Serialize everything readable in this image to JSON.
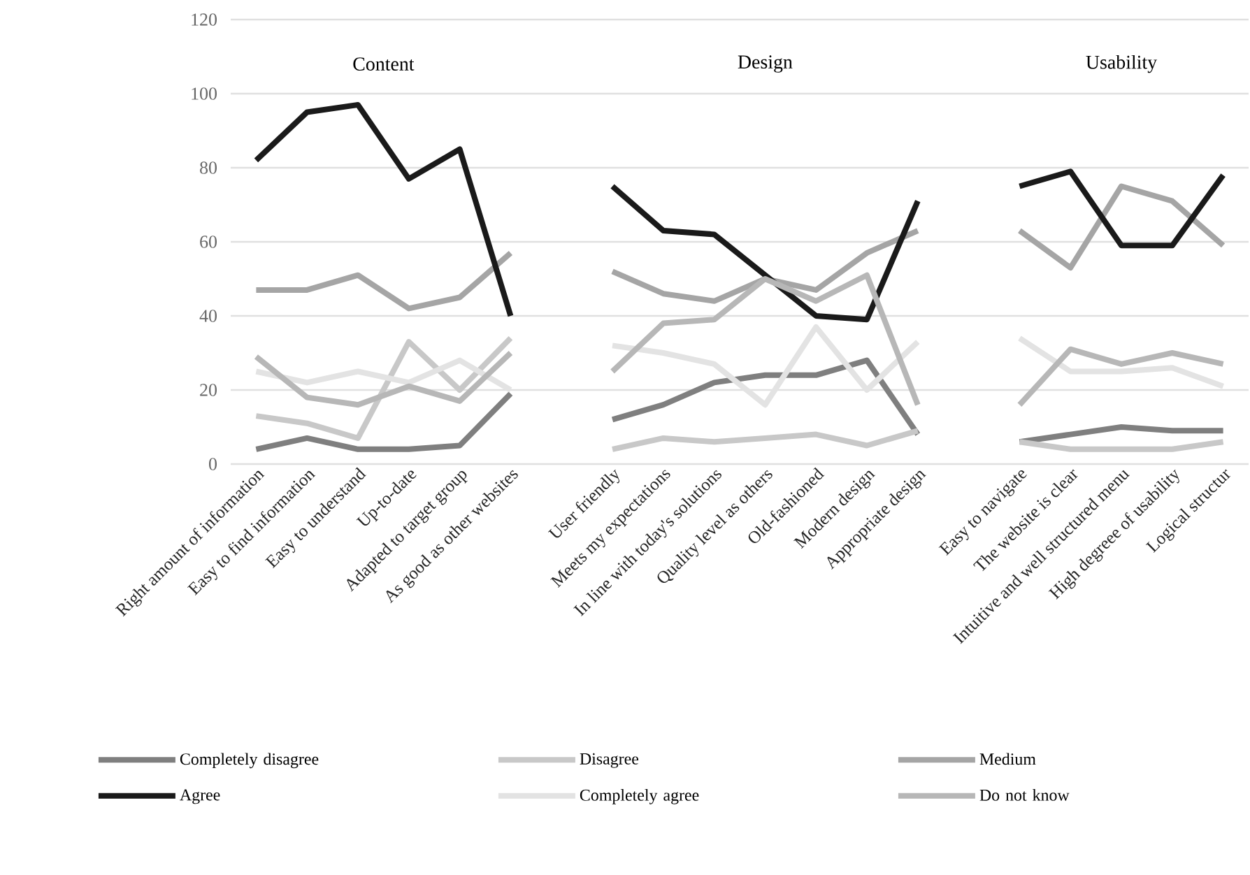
{
  "chart_data": {
    "type": "line",
    "categories": [
      "Right amount of information",
      "Easy to find information",
      "Easy to understand",
      "Up-to-date",
      "Adapted to target group",
      "As good as other websites",
      null,
      "User friendly",
      "Meets my expectations",
      "In line with today's solutions",
      "Quality level as others",
      "Old-fashioned",
      "Modern design",
      "Appropriate design",
      null,
      "Easy to navigate",
      "The website is clear",
      "Intuitive and well structured menu",
      "High degreee of usability",
      "Logical structur"
    ],
    "series": [
      {
        "name": "Completely disagree",
        "color": "#7f7f7f",
        "values": [
          4,
          7,
          4,
          4,
          5,
          19,
          null,
          12,
          16,
          22,
          24,
          24,
          28,
          8,
          null,
          6,
          8,
          10,
          9,
          9
        ]
      },
      {
        "name": "Disagree",
        "color": "#c8c8c8",
        "values": [
          13,
          11,
          7,
          33,
          20,
          34,
          null,
          4,
          7,
          6,
          7,
          8,
          5,
          9,
          null,
          6,
          4,
          4,
          4,
          6
        ]
      },
      {
        "name": "Medium",
        "color": "#a5a5a5",
        "values": [
          47,
          47,
          51,
          42,
          45,
          57,
          null,
          52,
          46,
          44,
          50,
          47,
          57,
          63,
          null,
          63,
          53,
          75,
          71,
          59
        ]
      },
      {
        "name": "Agree",
        "color": "#1a1a1a",
        "values": [
          82,
          95,
          97,
          77,
          85,
          40,
          null,
          75,
          63,
          62,
          51,
          40,
          39,
          71,
          null,
          75,
          79,
          59,
          59,
          78
        ]
      },
      {
        "name": "Completely agree",
        "color": "#e3e3e3",
        "values": [
          25,
          22,
          25,
          22,
          28,
          20,
          null,
          32,
          30,
          27,
          16,
          37,
          20,
          33,
          null,
          34,
          25,
          25,
          26,
          21
        ]
      },
      {
        "name": "Do not know",
        "color": "#b7b7b7",
        "values": [
          29,
          18,
          16,
          21,
          17,
          30,
          null,
          25,
          38,
          39,
          50,
          44,
          51,
          16,
          null,
          16,
          31,
          27,
          30,
          27
        ]
      }
    ],
    "annotations": [
      "Content",
      "Design",
      "Usability"
    ],
    "ylim": [
      0,
      120
    ],
    "yticks": [
      0,
      20,
      40,
      60,
      80,
      100,
      120
    ],
    "grid": "y",
    "legend": "bottom",
    "line_style": "solid",
    "marker": "none"
  }
}
